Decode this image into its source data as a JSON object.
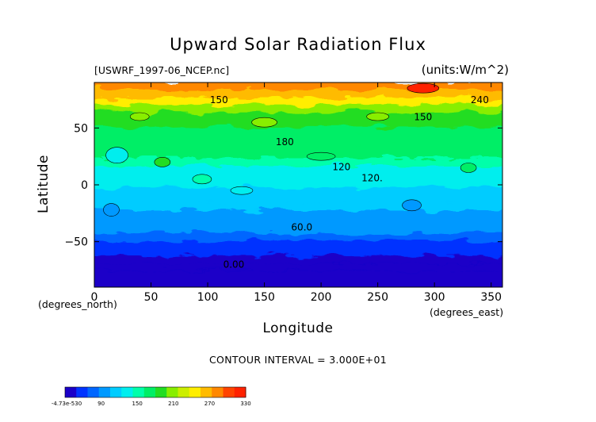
{
  "chart_data": {
    "type": "heatmap",
    "title": "Upward Solar Radiation Flux",
    "subtitle_left": "[USWRF_1997-06_NCEP.nc]",
    "subtitle_right": "(units:W/m^2)",
    "xlabel": "Longitude",
    "ylabel": "Latitude",
    "x_unit": "(degrees_north)",
    "x_unit_right": "(degrees_east)",
    "footer": "CONTOUR INTERVAL = 3.000E+01",
    "xlim": [
      0,
      360
    ],
    "ylim": [
      -90,
      90
    ],
    "x_ticks": [
      0,
      50,
      100,
      150,
      200,
      250,
      300,
      350
    ],
    "y_ticks": [
      -50,
      0,
      50
    ],
    "contour_levels": [
      0,
      30,
      60,
      90,
      120,
      150,
      180,
      210,
      240,
      270,
      300,
      330
    ],
    "contour_labels": [
      {
        "text": "150",
        "lon": 110,
        "lat": 72
      },
      {
        "text": "150",
        "lon": 290,
        "lat": 57
      },
      {
        "text": "240",
        "lon": 340,
        "lat": 72
      },
      {
        "text": "180",
        "lon": 168,
        "lat": 35
      },
      {
        "text": "120",
        "lon": 218,
        "lat": 13
      },
      {
        "text": "120.",
        "lon": 245,
        "lat": 3
      },
      {
        "text": "60.0",
        "lon": 183,
        "lat": -40
      },
      {
        "text": "0.00",
        "lon": 123,
        "lat": -73
      }
    ],
    "zonal_profile": [
      {
        "lat": 90,
        "value": 270
      },
      {
        "lat": 83,
        "value": 255
      },
      {
        "lat": 76,
        "value": 230
      },
      {
        "lat": 70,
        "value": 195
      },
      {
        "lat": 63,
        "value": 175
      },
      {
        "lat": 56,
        "value": 165
      },
      {
        "lat": 50,
        "value": 160
      },
      {
        "lat": 43,
        "value": 155
      },
      {
        "lat": 36,
        "value": 150
      },
      {
        "lat": 30,
        "value": 145
      },
      {
        "lat": 23,
        "value": 135
      },
      {
        "lat": 16,
        "value": 120
      },
      {
        "lat": 10,
        "value": 110
      },
      {
        "lat": 3,
        "value": 105
      },
      {
        "lat": -3,
        "value": 100
      },
      {
        "lat": -10,
        "value": 95
      },
      {
        "lat": -16,
        "value": 85
      },
      {
        "lat": -23,
        "value": 75
      },
      {
        "lat": -30,
        "value": 70
      },
      {
        "lat": -36,
        "value": 63
      },
      {
        "lat": -43,
        "value": 45
      },
      {
        "lat": -50,
        "value": 35
      },
      {
        "lat": -56,
        "value": 25
      },
      {
        "lat": -63,
        "value": 12
      },
      {
        "lat": -70,
        "value": 3
      },
      {
        "lat": -76,
        "value": 0
      },
      {
        "lat": -83,
        "value": 0
      },
      {
        "lat": -90,
        "value": 0
      }
    ],
    "colorbar": {
      "tick_labels": [
        "-4.73e-530",
        "90",
        "150",
        "210",
        "270",
        "330"
      ],
      "colors": [
        "#1a00c8",
        "#0033ff",
        "#0066ff",
        "#0099ff",
        "#00ccff",
        "#00eeee",
        "#00ffaa",
        "#00ee66",
        "#22dd22",
        "#88ee00",
        "#ccee00",
        "#ffee00",
        "#ffbb00",
        "#ff8800",
        "#ff4400",
        "#ff2200"
      ]
    },
    "grid": false,
    "legend_placement": "bottom-left"
  }
}
